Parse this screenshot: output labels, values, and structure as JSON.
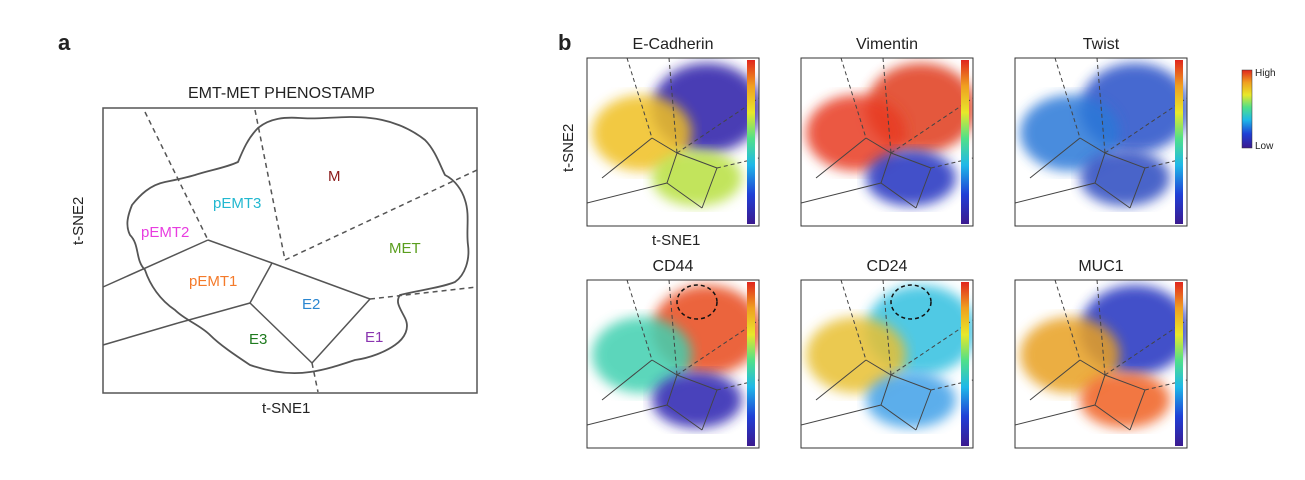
{
  "panel_a": {
    "label": "a",
    "title": "EMT-MET PHENOSTAMP",
    "xlabel": "t-SNE1",
    "ylabel": "t-SNE2",
    "regions": [
      {
        "name": "M",
        "color": "#8b1a1a"
      },
      {
        "name": "pEMT3",
        "color": "#22b8d0"
      },
      {
        "name": "pEMT2",
        "color": "#e83de0"
      },
      {
        "name": "MET",
        "color": "#5a9e1e"
      },
      {
        "name": "pEMT1",
        "color": "#f47a2a"
      },
      {
        "name": "E2",
        "color": "#2a86d0"
      },
      {
        "name": "E3",
        "color": "#1e7a1e"
      },
      {
        "name": "E1",
        "color": "#8a35b0"
      }
    ]
  },
  "panel_b": {
    "label": "b",
    "xlabel": "t-SNE1",
    "ylabel": "t-SNE2",
    "markers": [
      "E-Cadherin",
      "Vimentin",
      "Twist",
      "CD44",
      "CD24",
      "MUC1"
    ],
    "colorbar": {
      "high": "High",
      "low": "Low",
      "colors": [
        "#3b1a8f",
        "#1f3fd6",
        "#1fb8e8",
        "#4fe08a",
        "#e8e82a",
        "#f0a020",
        "#e0261e"
      ]
    }
  }
}
